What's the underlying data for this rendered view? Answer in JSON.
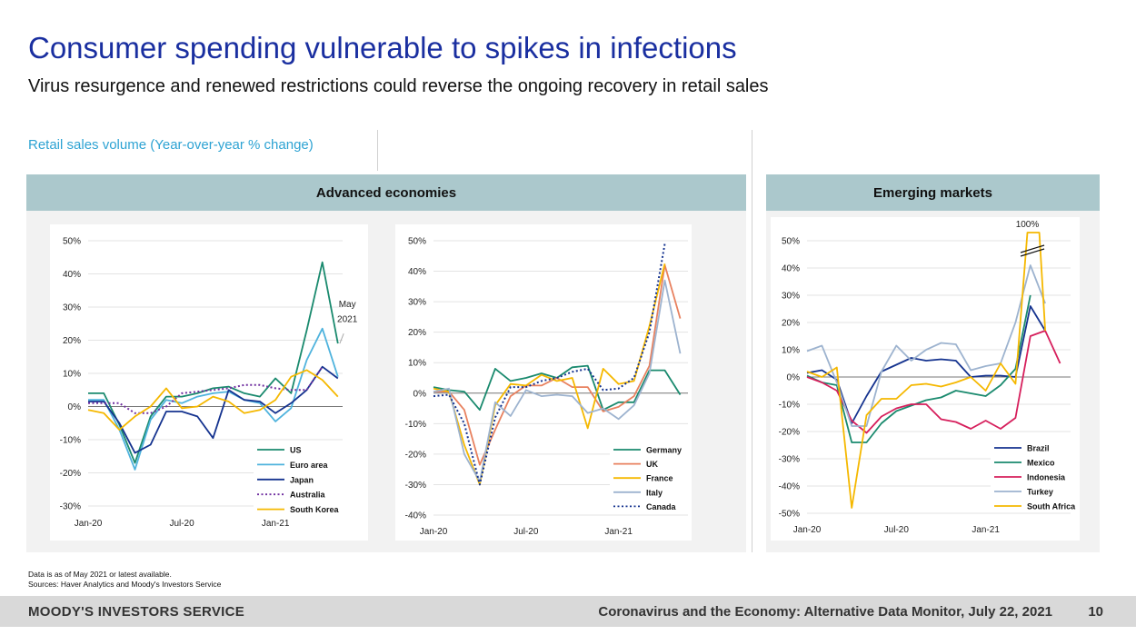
{
  "header": {
    "title": "Consumer spending vulnerable to spikes in infections",
    "subtitle": "Virus resurgence and renewed restrictions could reverse the ongoing recovery in retail sales"
  },
  "caption": "Retail sales volume (Year-over-year % change)",
  "panels": {
    "advanced": "Advanced economies",
    "emerging": "Emerging markets"
  },
  "notes": {
    "line1": "Data is as of May 2021 or latest available.",
    "line2": "Sources: Haver Analytics and Moody's Investors Service"
  },
  "footer": {
    "brand": "MOODY'S INVESTORS SERVICE",
    "doc_title": "Coronavirus and the Economy: Alternative Data Monitor, July 22, 2021",
    "page_number": "10"
  },
  "chart_data": [
    {
      "id": "adv1",
      "type": "line",
      "title": "Advanced economies",
      "ylabel": "Retail sales volume (Year-over-year % change)",
      "ylim": [
        -30,
        50
      ],
      "yticks": [
        50,
        40,
        30,
        20,
        10,
        0,
        -10,
        -20,
        -30
      ],
      "ytick_labels": [
        "50%",
        "40%",
        "30%",
        "20%",
        "10%",
        "0%",
        "-10%",
        "-20%",
        "-30%"
      ],
      "xlim": [
        0,
        16.3
      ],
      "xticks": [
        {
          "label": "Jan-20",
          "x": 0
        },
        {
          "label": "Jul-20",
          "x": 6
        },
        {
          "label": "Jan-21",
          "x": 12
        }
      ],
      "annotations": [
        {
          "text": "May",
          "x": 16.6,
          "y": 30
        },
        {
          "text": "2021",
          "x": 16.6,
          "y": 25.5
        }
      ],
      "legend": "bottom-right",
      "series": [
        {
          "name": "US",
          "color": "#1a8a6e",
          "dash": false,
          "x": [
            0,
            1,
            2,
            3,
            4,
            5,
            6,
            7,
            8,
            9,
            10,
            11,
            12,
            13,
            14,
            15,
            16
          ],
          "values": [
            4,
            4,
            -5.5,
            -17,
            -3,
            3,
            3,
            4,
            5.5,
            6,
            4,
            3,
            8.5,
            4,
            23,
            43.5,
            19
          ]
        },
        {
          "name": "Euro area",
          "color": "#4fb3dd",
          "dash": false,
          "x": [
            0,
            1,
            2,
            3,
            4,
            5,
            6,
            7,
            8,
            9,
            10,
            11,
            12,
            13,
            14,
            15,
            16
          ],
          "values": [
            2,
            2,
            -7,
            -19,
            -4,
            2,
            1,
            3,
            4,
            4.5,
            2,
            1,
            -4.5,
            -0.5,
            14,
            23.5,
            9
          ]
        },
        {
          "name": "Japan",
          "color": "#15338f",
          "dash": false,
          "x": [
            0,
            1,
            2,
            3,
            4,
            5,
            6,
            7,
            8,
            9,
            10,
            11,
            12,
            13,
            14,
            15,
            16
          ],
          "values": [
            1.5,
            1.5,
            -5,
            -14,
            -11.5,
            -1.5,
            -1.5,
            -3,
            -9.5,
            5,
            2,
            1.5,
            -2,
            1,
            5,
            12,
            8.5
          ]
        },
        {
          "name": "Australia",
          "color": "#7030a0",
          "dash": true,
          "x": [
            0,
            1,
            2,
            3,
            4,
            5,
            6,
            7,
            8,
            9,
            10,
            11,
            12,
            13,
            14,
            15
          ],
          "values": [
            1,
            1,
            1,
            -2,
            -2,
            0,
            4,
            4.5,
            5,
            5.5,
            6.5,
            6.5,
            5.5,
            5,
            5,
            12
          ]
        },
        {
          "name": "South Korea",
          "color": "#f5b800",
          "dash": false,
          "x": [
            0,
            1,
            2,
            3,
            4,
            5,
            6,
            7,
            8,
            9,
            10,
            11,
            12,
            13,
            14,
            15,
            16
          ],
          "values": [
            -1,
            -2,
            -7,
            -3,
            0,
            5.5,
            -0.5,
            0,
            3,
            1.5,
            -2,
            -1,
            2,
            9,
            11,
            8,
            3
          ]
        }
      ]
    },
    {
      "id": "adv2",
      "type": "line",
      "ylim": [
        -40,
        50
      ],
      "yticks": [
        50,
        40,
        30,
        20,
        10,
        0,
        -10,
        -20,
        -30,
        -40
      ],
      "ytick_labels": [
        "50%",
        "40%",
        "30%",
        "20%",
        "10%",
        "0%",
        "-10%",
        "-20%",
        "-30%",
        "-40%"
      ],
      "xlim": [
        0,
        16.5
      ],
      "xticks": [
        {
          "label": "Jan-20",
          "x": 0
        },
        {
          "label": "Jul-20",
          "x": 6
        },
        {
          "label": "Jan-21",
          "x": 12
        }
      ],
      "legend": "bottom-right",
      "series": [
        {
          "name": "Germany",
          "color": "#1a8a6e",
          "dash": false,
          "x": [
            0,
            1,
            2,
            3,
            4,
            5,
            6,
            7,
            8,
            9,
            10,
            11,
            12,
            13,
            14,
            15,
            16
          ],
          "values": [
            2,
            1,
            0.5,
            -5.5,
            8,
            4,
            5,
            6.5,
            5,
            8.5,
            9,
            -5.5,
            -3,
            -3,
            7.5,
            7.5,
            -0.5
          ]
        },
        {
          "name": "UK",
          "color": "#e8815f",
          "dash": false,
          "x": [
            0,
            1,
            2,
            3,
            4,
            5,
            6,
            7,
            8,
            9,
            10,
            11,
            12,
            13,
            14,
            15,
            16
          ],
          "values": [
            0.5,
            0.5,
            -5.5,
            -23.5,
            -12,
            -1,
            2.5,
            2.5,
            5,
            2,
            2,
            -6,
            -4.5,
            -1,
            9,
            42,
            24.5
          ]
        },
        {
          "name": "France",
          "color": "#f5b800",
          "dash": false,
          "x": [
            0,
            1,
            2,
            3,
            4,
            5,
            6,
            7,
            8,
            9,
            10,
            11,
            12,
            13,
            14,
            15
          ],
          "values": [
            1.5,
            0.5,
            -17,
            -30,
            -4,
            3,
            2.5,
            6,
            4,
            5,
            -11.5,
            8,
            3,
            4,
            22,
            42.5
          ]
        },
        {
          "name": "Italy",
          "color": "#9db3cf",
          "dash": false,
          "x": [
            0,
            1,
            2,
            3,
            4,
            5,
            6,
            7,
            8,
            9,
            10,
            11,
            12,
            13,
            14,
            15,
            16
          ],
          "values": [
            0.5,
            1.5,
            -20,
            -29,
            -3,
            -7.5,
            1,
            -1,
            -0.5,
            -1,
            -6.5,
            -5,
            -8.5,
            -4,
            6.5,
            37,
            13
          ]
        },
        {
          "name": "Canada",
          "color": "#15338f",
          "dash": true,
          "x": [
            0,
            1,
            2,
            3,
            4,
            5,
            6,
            7,
            8,
            9,
            10,
            11,
            12,
            13,
            14,
            15
          ],
          "values": [
            -1,
            -0.5,
            -10,
            -30,
            -8,
            2,
            2,
            4,
            5,
            7,
            8,
            1,
            1.5,
            5,
            20,
            49
          ]
        }
      ]
    },
    {
      "id": "em",
      "type": "line",
      "title": "Emerging markets",
      "ylim": [
        -50,
        50
      ],
      "yticks": [
        50,
        40,
        30,
        20,
        10,
        0,
        -10,
        -20,
        -30,
        -40,
        -50
      ],
      "ytick_labels": [
        "50%",
        "40%",
        "30%",
        "20%",
        "10%",
        "0%",
        "-10%",
        "-20%",
        "-30%",
        "-40%",
        "-50%"
      ],
      "xlim": [
        0,
        17.7
      ],
      "xticks": [
        {
          "label": "Jan-20",
          "x": 0
        },
        {
          "label": "Jul-20",
          "x": 6
        },
        {
          "label": "Jan-21",
          "x": 12
        }
      ],
      "annotations": [
        {
          "text": "100%",
          "x": 14.8,
          "y": 55
        }
      ],
      "legend": "bottom-right",
      "series": [
        {
          "name": "Brazil",
          "color": "#15338f",
          "dash": false,
          "x": [
            0,
            1,
            2,
            3,
            4,
            5,
            6,
            7,
            8,
            9,
            10,
            11,
            12,
            13,
            14,
            15,
            16
          ],
          "values": [
            1.5,
            2.5,
            -1,
            -17,
            -7,
            2,
            4.5,
            7,
            6,
            6.5,
            6,
            0,
            0.5,
            0.5,
            0,
            26,
            17
          ]
        },
        {
          "name": "Mexico",
          "color": "#1a8a6e",
          "dash": false,
          "x": [
            0,
            1,
            2,
            3,
            4,
            5,
            6,
            7,
            8,
            9,
            10,
            11,
            12,
            13,
            14,
            15
          ],
          "values": [
            0.5,
            -2,
            -3,
            -24,
            -24,
            -17,
            -12.5,
            -10.5,
            -8.5,
            -7.5,
            -5,
            -6,
            -7,
            -3,
            3,
            30
          ]
        },
        {
          "name": "Indonesia",
          "color": "#d61f5c",
          "dash": false,
          "x": [
            0,
            1,
            2,
            3,
            4,
            5,
            6,
            7,
            8,
            9,
            10,
            11,
            12,
            13,
            14,
            15,
            16,
            17
          ],
          "values": [
            0,
            -2,
            -5,
            -16,
            -20.5,
            -14.5,
            -11.5,
            -10,
            -10,
            -15.5,
            -16.5,
            -19,
            -16,
            -19,
            -15,
            15,
            17,
            5
          ]
        },
        {
          "name": "Turkey",
          "color": "#9db3cf",
          "dash": false,
          "x": [
            0,
            1,
            2,
            3,
            4,
            5,
            6,
            7,
            8,
            9,
            10,
            11,
            12,
            13,
            14,
            15,
            16
          ],
          "values": [
            9.5,
            11.5,
            -2,
            -18,
            -18,
            2,
            11.5,
            6,
            10,
            12.5,
            12,
            2.5,
            4,
            5,
            20,
            41,
            27
          ]
        },
        {
          "name": "South Africa",
          "color": "#f5b800",
          "dash": false,
          "x": [
            0,
            1,
            2,
            3,
            4,
            5,
            6,
            7,
            8,
            9,
            10,
            11,
            12,
            13,
            14,
            14.8,
            15.6,
            16
          ],
          "values": [
            2,
            0,
            3.5,
            -48,
            -14,
            -8,
            -8,
            -3,
            -2.5,
            -3.5,
            -2,
            0,
            -5,
            5,
            -2.5,
            100,
            100,
            17
          ]
        }
      ]
    }
  ]
}
